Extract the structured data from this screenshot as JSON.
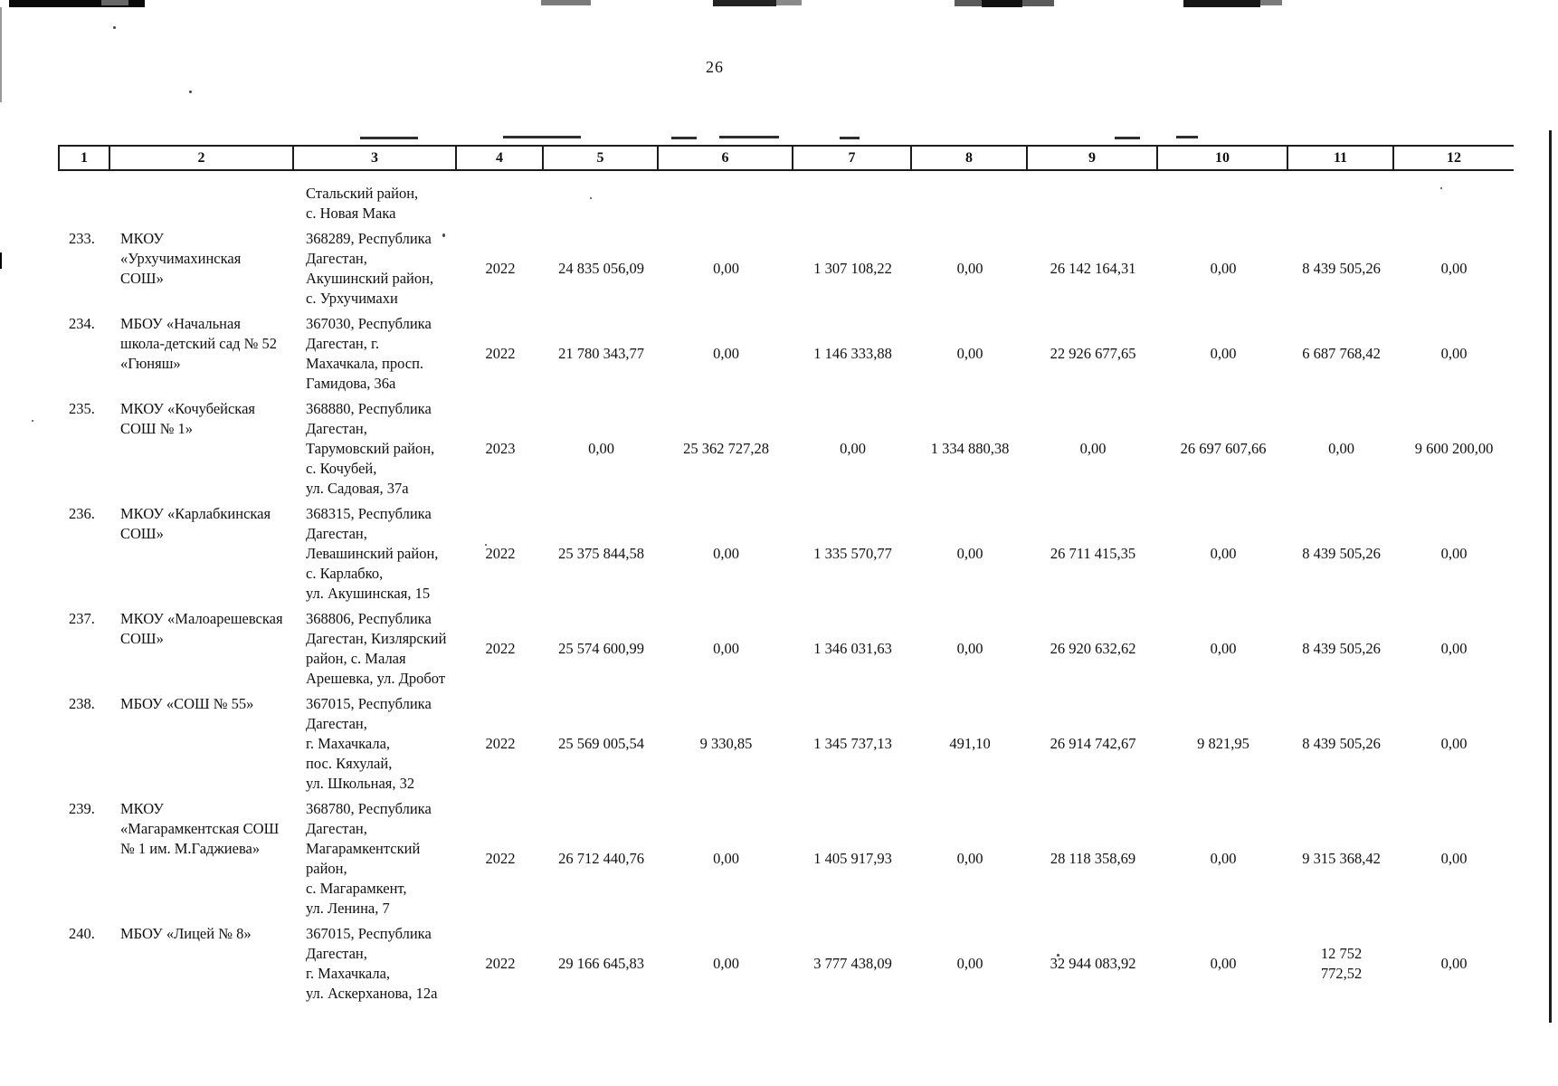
{
  "page": {
    "number": "26"
  },
  "table": {
    "column_headers": [
      "1",
      "2",
      "3",
      "4",
      "5",
      "6",
      "7",
      "8",
      "9",
      "10",
      "11",
      "12"
    ],
    "rows": [
      {
        "num": "",
        "name": [],
        "address": [
          "Стальский район,",
          "с. Новая Мака"
        ],
        "values": []
      },
      {
        "num": "233.",
        "name": [
          "МКОУ",
          "«Урхучимахинская",
          "СОШ»"
        ],
        "address": [
          "368289, Республика",
          "Дагестан,",
          "Акушинский район,",
          "с. Урхучимахи"
        ],
        "values": [
          "2022",
          "24 835 056,09",
          "0,00",
          "1 307 108,22",
          "0,00",
          "26 142 164,31",
          "0,00",
          "8 439 505,26",
          "0,00"
        ]
      },
      {
        "num": "234.",
        "name": [
          "МБОУ «Начальная",
          "школа-детский сад № 52",
          "«Гюняш»"
        ],
        "address": [
          "367030, Республика",
          "Дагестан, г.",
          "Махачкала, просп.",
          "Гамидова, 36а"
        ],
        "values": [
          "2022",
          "21 780 343,77",
          "0,00",
          "1 146 333,88",
          "0,00",
          "22 926 677,65",
          "0,00",
          "6 687 768,42",
          "0,00"
        ]
      },
      {
        "num": "235.",
        "name": [
          "МКОУ «Кочубейская",
          "СОШ № 1»"
        ],
        "address": [
          "368880, Республика",
          "Дагестан,",
          "Тарумовский район,",
          "с. Кочубей,",
          "ул. Садовая, 37а"
        ],
        "values": [
          "2023",
          "0,00",
          "25 362 727,28",
          "0,00",
          "1 334 880,38",
          "0,00",
          "26 697 607,66",
          "0,00",
          "9 600 200,00"
        ]
      },
      {
        "num": "236.",
        "name": [
          "МКОУ «Карлабкинская",
          "СОШ»"
        ],
        "address": [
          "368315, Республика",
          "Дагестан,",
          "Левашинский район,",
          "с. Карлабко,",
          "ул. Акушинская, 15"
        ],
        "values": [
          "2022",
          "25 375 844,58",
          "0,00",
          "1 335 570,77",
          "0,00",
          "26 711 415,35",
          "0,00",
          "8 439 505,26",
          "0,00"
        ]
      },
      {
        "num": "237.",
        "name": [
          "МКОУ «Малоарешевская",
          "СОШ»"
        ],
        "address": [
          "368806, Республика",
          "Дагестан, Кизлярский",
          "район, с. Малая",
          "Арешевка, ул. Дробот"
        ],
        "values": [
          "2022",
          "25 574 600,99",
          "0,00",
          "1 346 031,63",
          "0,00",
          "26 920 632,62",
          "0,00",
          "8 439 505,26",
          "0,00"
        ]
      },
      {
        "num": "238.",
        "name": [
          "МБОУ «СОШ № 55»"
        ],
        "address": [
          "367015, Республика",
          "Дагестан,",
          "г. Махачкала,",
          "пос. Кяхулай,",
          "ул. Школьная, 32"
        ],
        "values": [
          "2022",
          "25 569 005,54",
          "9 330,85",
          "1 345 737,13",
          "491,10",
          "26 914 742,67",
          "9 821,95",
          "8 439 505,26",
          "0,00"
        ]
      },
      {
        "num": "239.",
        "name": [
          "МКОУ",
          "«Магарамкентская СОШ",
          "№ 1 им. М.Гаджиева»"
        ],
        "address": [
          "368780, Республика",
          "Дагестан,",
          "Магарамкентский",
          "район,",
          "с. Магарамкент,",
          "ул. Ленина, 7"
        ],
        "values": [
          "2022",
          "26 712 440,76",
          "0,00",
          "1 405 917,93",
          "0,00",
          "28 118 358,69",
          "0,00",
          "9 315 368,42",
          "0,00"
        ]
      },
      {
        "num": "240.",
        "name": [
          "МБОУ «Лицей № 8»"
        ],
        "address": [
          "367015, Республика",
          "Дагестан,",
          "г. Махачкала,",
          "ул. Аскерханова, 12а"
        ],
        "values": [
          "2022",
          "29 166 645,83",
          "0,00",
          "3 777 438,09",
          "0,00",
          "32 944 083,92",
          "0,00",
          "12 752\n772,52",
          "0,00"
        ]
      }
    ]
  }
}
